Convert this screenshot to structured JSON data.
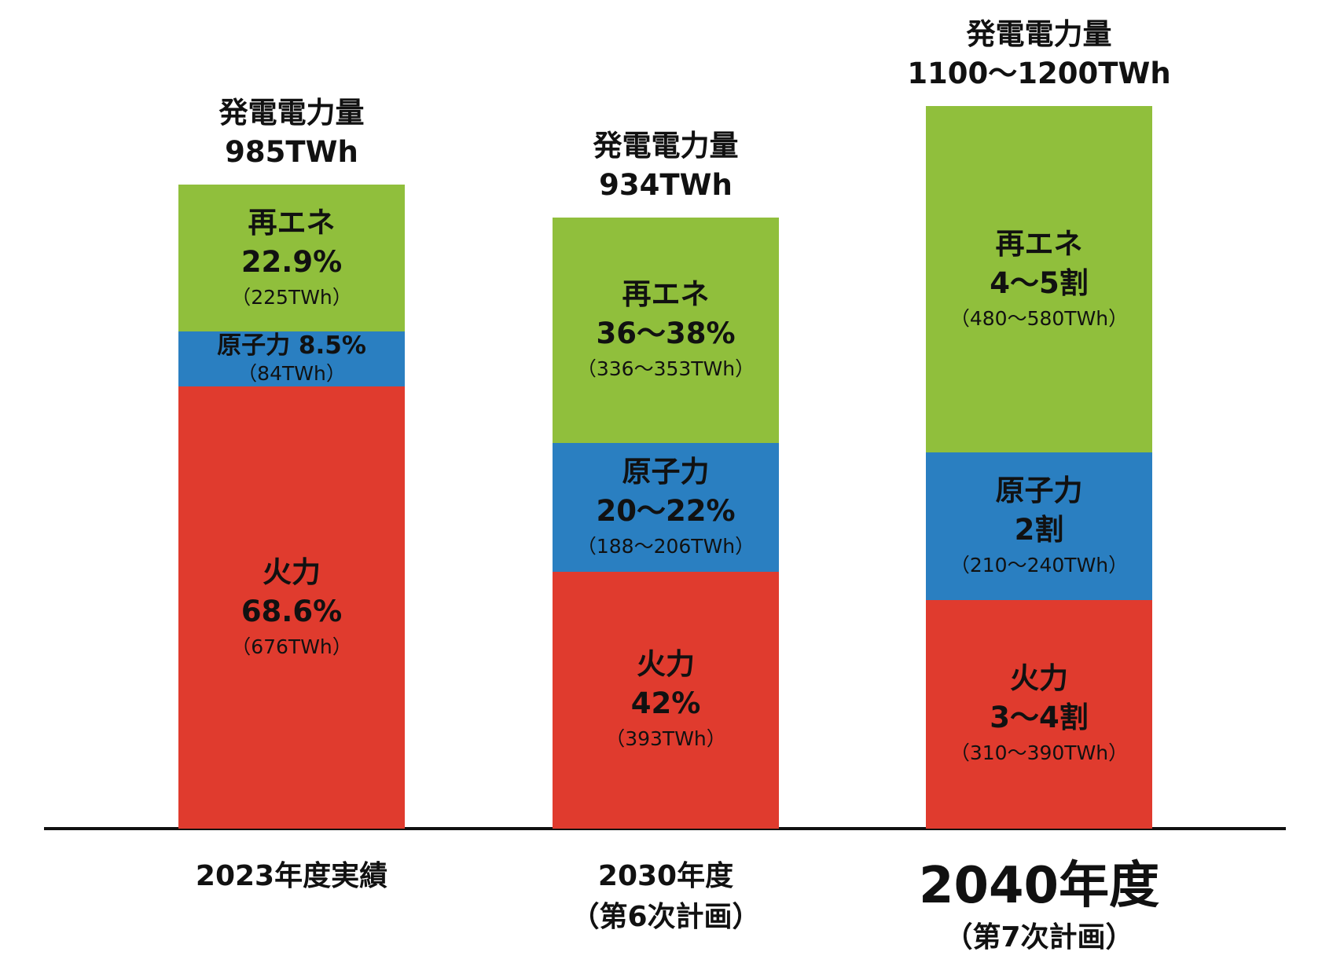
{
  "chart_data": {
    "type": "bar",
    "stacked": true,
    "title": "",
    "xlabel": "",
    "ylabel": "",
    "grid": false,
    "unit": "TWh",
    "colors": {
      "thermal": "#e03b2e",
      "nuclear": "#2a7fc1",
      "renewable": "#90bf3c"
    },
    "categories": [
      {
        "line1": "2023年度実績",
        "line2": ""
      },
      {
        "line1": "2030年度",
        "line2": "（第6次計画）"
      },
      {
        "line1": "2040年度",
        "line2": "（第7次計画）"
      }
    ],
    "totals": [
      {
        "label": "発電電力量",
        "value_text": "985TWh"
      },
      {
        "label": "発電電力量",
        "value_text": "934TWh"
      },
      {
        "label": "発電電力量",
        "value_text": "1100〜1200TWh"
      }
    ],
    "series": [
      {
        "key": "thermal",
        "name": "火力",
        "values": [
          676,
          393,
          350
        ],
        "share_text": [
          "68.6%",
          "42%",
          "3〜4割"
        ],
        "twh_text": [
          "（676TWh）",
          "（393TWh）",
          "（310〜390TWh）"
        ]
      },
      {
        "key": "nuclear",
        "name": "原子力",
        "values": [
          84,
          197,
          225
        ],
        "share_text": [
          "8.5%",
          "20〜22%",
          "2割"
        ],
        "twh_text": [
          "（84TWh）",
          "（188〜206TWh）",
          "（210〜240TWh）"
        ]
      },
      {
        "key": "renewable",
        "name": "再エネ",
        "values": [
          225,
          344.5,
          530
        ],
        "share_text": [
          "22.9%",
          "36〜38%",
          "4〜5割"
        ],
        "twh_text": [
          "（225TWh）",
          "（336〜353TWh）",
          "（480〜580TWh）"
        ]
      }
    ]
  }
}
